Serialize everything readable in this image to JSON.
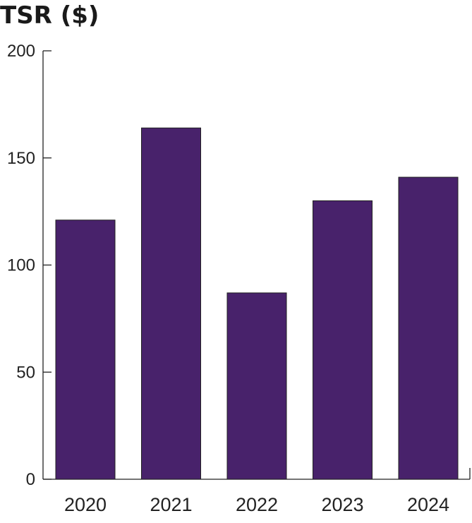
{
  "chart_data": {
    "type": "bar",
    "title": "TSR ($)",
    "categories": [
      "2020",
      "2021",
      "2022",
      "2023",
      "2024"
    ],
    "values": [
      121,
      164,
      87,
      130,
      141
    ],
    "ylim": [
      0,
      200
    ],
    "yticks": [
      "0",
      "50",
      "100",
      "150",
      "200"
    ],
    "xlabel": "",
    "ylabel": "",
    "grid": false,
    "bar_color": "#48226b"
  }
}
